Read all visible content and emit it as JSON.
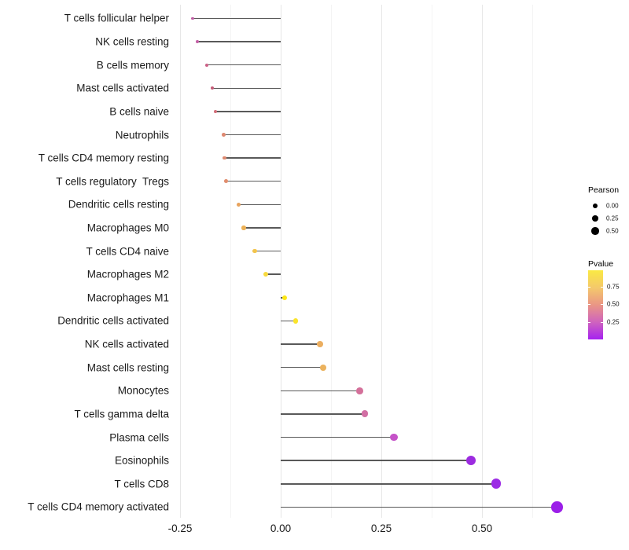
{
  "chart_data": {
    "type": "scatter",
    "variant": "lollipop",
    "title": "",
    "xlabel": "",
    "ylabel": "",
    "xlim": [
      -0.27,
      0.73
    ],
    "grid": "vertical major + minor, light gray on white",
    "x_ticks": {
      "values": [
        -0.25,
        0,
        0.25,
        0.5
      ],
      "labels": [
        "-0.25",
        "0.00",
        "0.25",
        "0.50"
      ]
    },
    "x_minor_ticks": [
      -0.125,
      0.125,
      0.375,
      0.625
    ],
    "size_encoding": "Pearson",
    "color_encoding": "Pvalue",
    "points": [
      {
        "label": "T cells follicular helper",
        "pearson": -0.218,
        "pvalue_from_color": 0.33,
        "color": "#BE5BA2"
      },
      {
        "label": "NK cells resting",
        "pearson": -0.207,
        "pvalue_from_color": 0.34,
        "color": "#C35FA5"
      },
      {
        "label": "B cells memory",
        "pearson": -0.184,
        "pvalue_from_color": 0.42,
        "color": "#CB6186"
      },
      {
        "label": "Mast cells activated",
        "pearson": -0.17,
        "pvalue_from_color": 0.44,
        "color": "#C45B77"
      },
      {
        "label": "B cells naive",
        "pearson": -0.162,
        "pvalue_from_color": 0.47,
        "color": "#D26E79"
      },
      {
        "label": "Neutrophils",
        "pearson": -0.141,
        "pvalue_from_color": 0.54,
        "color": "#DE8971"
      },
      {
        "label": "T cells CD4 memory resting",
        "pearson": -0.139,
        "pvalue_from_color": 0.54,
        "color": "#DE8A70"
      },
      {
        "label": "T cells regulatory  Tregs",
        "pearson": -0.135,
        "pvalue_from_color": 0.56,
        "color": "#E08D6D"
      },
      {
        "label": "Dendritic cells resting",
        "pearson": -0.105,
        "pvalue_from_color": 0.63,
        "color": "#E8A35D"
      },
      {
        "label": "Macrophages M0",
        "pearson": -0.092,
        "pvalue_from_color": 0.67,
        "color": "#ECB156"
      },
      {
        "label": "T cells CD4 naive",
        "pearson": -0.064,
        "pvalue_from_color": 0.74,
        "color": "#F2C44C"
      },
      {
        "label": "Macrophages M2",
        "pearson": -0.037,
        "pvalue_from_color": 0.84,
        "color": "#F8DA3E"
      },
      {
        "label": "Macrophages M1",
        "pearson": 0.01,
        "pvalue_from_color": 0.95,
        "color": "#FDE716"
      },
      {
        "label": "Dendritic cells activated",
        "pearson": 0.037,
        "pvalue_from_color": 0.9,
        "color": "#FAE42C"
      },
      {
        "label": "NK cells activated",
        "pearson": 0.098,
        "pvalue_from_color": 0.66,
        "color": "#EBAE60"
      },
      {
        "label": "Mast cells resting",
        "pearson": 0.105,
        "pvalue_from_color": 0.67,
        "color": "#EBB25E"
      },
      {
        "label": "Monocytes",
        "pearson": 0.197,
        "pvalue_from_color": 0.4,
        "color": "#D4709A"
      },
      {
        "label": "T cells gamma delta",
        "pearson": 0.209,
        "pvalue_from_color": 0.38,
        "color": "#D26FA4"
      },
      {
        "label": "Plasma cells",
        "pearson": 0.281,
        "pvalue_from_color": 0.2,
        "color": "#C553C8"
      },
      {
        "label": "Eosinophils",
        "pearson": 0.473,
        "pvalue_from_color": 0.05,
        "color": "#9C2BE0"
      },
      {
        "label": "T cells CD8",
        "pearson": 0.535,
        "pvalue_from_color": 0.04,
        "color": "#9C2BE5"
      },
      {
        "label": "T cells CD4 memory activated",
        "pearson": 0.686,
        "pvalue_from_color": 0.02,
        "color": "#9B1FE8"
      }
    ]
  },
  "legend": {
    "pearson": {
      "title": "Pearson",
      "dot_color": "#000000",
      "items": [
        {
          "label": "0.00",
          "value": 0.0
        },
        {
          "label": "0.25",
          "value": 0.25
        },
        {
          "label": "0.50",
          "value": 0.5
        }
      ]
    },
    "pvalue": {
      "title": "Pvalue",
      "ticks": [
        {
          "label": "0.75",
          "value": 0.75
        },
        {
          "label": "0.50",
          "value": 0.5
        },
        {
          "label": "0.25",
          "value": 0.25
        }
      ],
      "gradient_top_to_bottom": [
        "#FAE943",
        "#F4C96B",
        "#EA9685",
        "#CF63BE",
        "#A621F0"
      ],
      "range_top_to_bottom": [
        0.98,
        0.0
      ]
    }
  },
  "colors": {
    "background": "#FFFFFF",
    "stem": "#3C3C3C",
    "grid_major": "#E7E7E7",
    "grid_minor": "#F4F4F4",
    "axis_text": "#1A1A1A"
  }
}
